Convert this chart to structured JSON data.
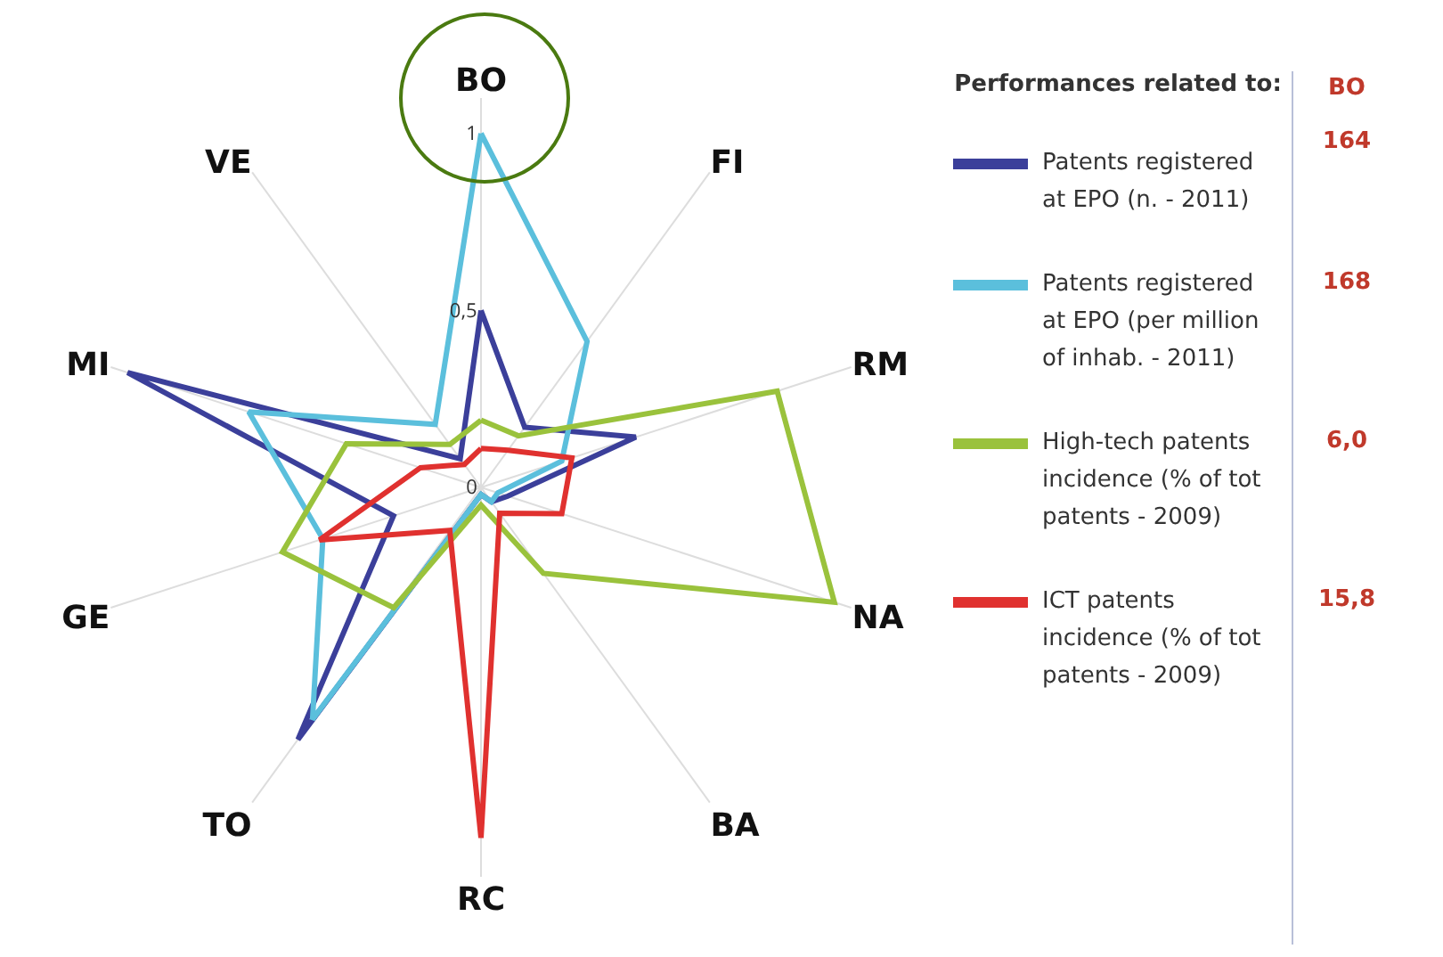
{
  "chart_data": {
    "type": "radar",
    "categories": [
      "BO",
      "FI",
      "RM",
      "NA",
      "BA",
      "RC",
      "TO",
      "GE",
      "MI",
      "VE"
    ],
    "legend_title": "Performances related to:",
    "legend": "right",
    "line_style": "solid",
    "marker": "none",
    "grid": "x",
    "ylim": [
      0,
      1.1
    ],
    "yticks": [
      0,
      {
        "value": 0.5,
        "label": "0,5"
      },
      1
    ],
    "annotations": [
      "BO",
      "164",
      "168",
      "6,0",
      "15,8"
    ],
    "series": [
      {
        "name": "Patents registered at EPO (n. - 2011)",
        "color": "#3b3f9a",
        "values": [
          0.5,
          0.21,
          0.46,
          0.08,
          0.05,
          0.02,
          0.88,
          0.26,
          1.05,
          0.1
        ]
      },
      {
        "name": "Patents registered at EPO (per million of inhab. - 2011)",
        "color": "#5bbfdc",
        "values": [
          1,
          0.51,
          0.24,
          0.05,
          0.05,
          0.02,
          0.81,
          0.47,
          0.69,
          0.22
        ]
      },
      {
        "name": "High-tech patents incidence (% of tot patents - 2009)",
        "color": "#9ac23c",
        "values": [
          0.19,
          0.18,
          0.88,
          1.05,
          0.3,
          0.05,
          0.42,
          0.59,
          0.4,
          0.15
        ]
      },
      {
        "name": "ICT patents incidence (% of tot patents - 2009)",
        "color": "#e0312f",
        "values": [
          0.11,
          0.13,
          0.27,
          0.24,
          0.09,
          0.99,
          0.15,
          0.48,
          0.18,
          0.08
        ]
      }
    ]
  }
}
